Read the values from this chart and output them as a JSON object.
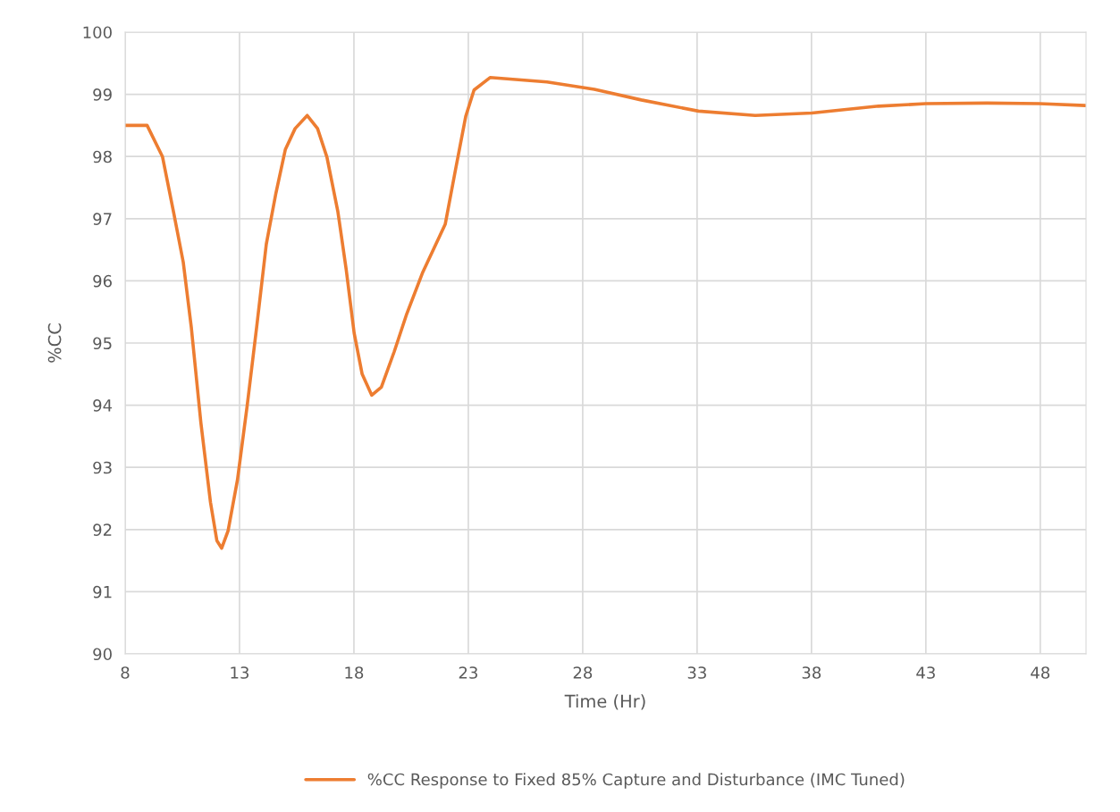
{
  "chart_data": {
    "type": "line",
    "xlabel": "Time (Hr)",
    "ylabel": "%CC",
    "xlim": [
      8,
      50
    ],
    "xticks": [
      8,
      13,
      18,
      23,
      28,
      33,
      38,
      43,
      48
    ],
    "ylim": [
      90,
      100
    ],
    "yticks": [
      90,
      91,
      92,
      93,
      94,
      95,
      96,
      97,
      98,
      99,
      100
    ],
    "grid": true,
    "legend": "bottom",
    "marker": "none",
    "line_style": "solid",
    "series": [
      {
        "name": "%CC Response to Fixed 85% Capture and Disturbance (IMC Tuned)",
        "color": "#ed7d31",
        "x": [
          8,
          8.96,
          9.63,
          10.12,
          10.54,
          10.89,
          11.31,
          11.73,
          12.01,
          12.22,
          12.5,
          12.91,
          13.33,
          13.75,
          14.17,
          14.59,
          15.0,
          15.43,
          15.96,
          16.41,
          16.82,
          17.3,
          17.66,
          18.01,
          18.36,
          18.78,
          19.2,
          19.76,
          20.31,
          21.01,
          21.99,
          22.41,
          22.89,
          23.25,
          23.95,
          26.44,
          28.51,
          30.56,
          33.06,
          35.54,
          38.02,
          40.93,
          43.0,
          45.67,
          47.96,
          49.97
        ],
        "values": [
          98.5,
          98.5,
          98.0,
          97.1,
          96.3,
          95.26,
          93.72,
          92.44,
          91.82,
          91.7,
          91.98,
          92.8,
          93.98,
          95.26,
          96.59,
          97.41,
          98.11,
          98.45,
          98.66,
          98.45,
          97.99,
          97.11,
          96.19,
          95.16,
          94.5,
          94.16,
          94.29,
          94.86,
          95.47,
          96.14,
          96.91,
          97.73,
          98.65,
          99.07,
          99.27,
          99.2,
          99.08,
          98.91,
          98.73,
          98.66,
          98.7,
          98.81,
          98.85,
          98.86,
          98.85,
          98.82
        ]
      }
    ]
  }
}
